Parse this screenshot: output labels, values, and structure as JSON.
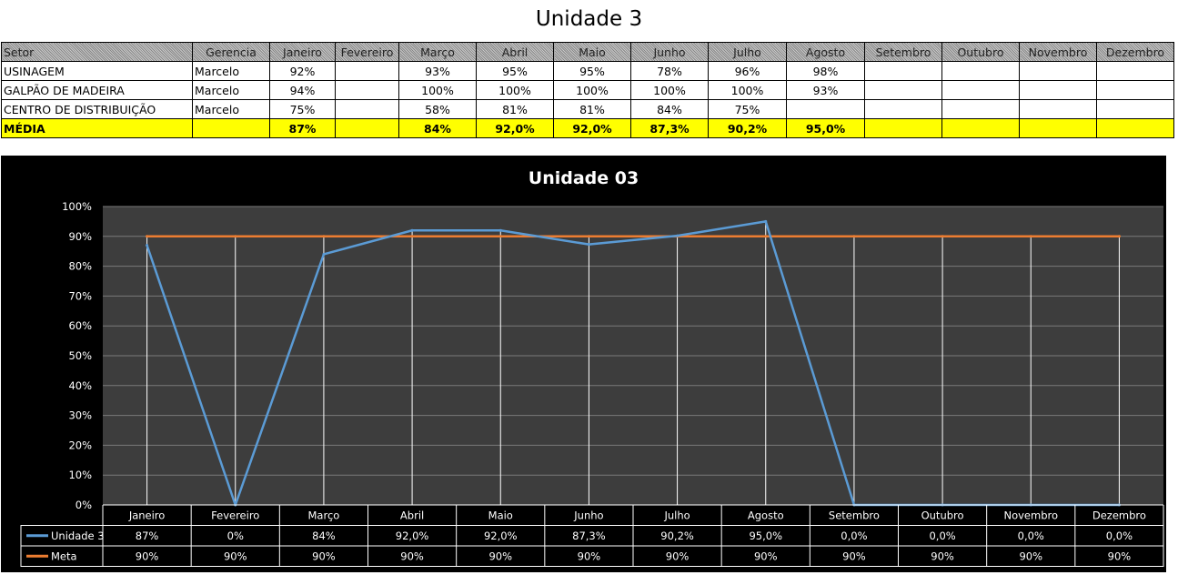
{
  "title": "Unidade 3",
  "table": {
    "headers": [
      "Setor",
      "Gerencia",
      "Janeiro",
      "Fevereiro",
      "Março",
      "Abril",
      "Maio",
      "Junho",
      "Julho",
      "Agosto",
      "Setembro",
      "Outubro",
      "Novembro",
      "Dezembro"
    ],
    "rows": [
      [
        "USINAGEM",
        "Marcelo",
        "92%",
        "",
        "93%",
        "95%",
        "95%",
        "78%",
        "96%",
        "98%",
        "",
        "",
        "",
        ""
      ],
      [
        "GALPÃO DE MADEIRA",
        "Marcelo",
        "94%",
        "",
        "100%",
        "100%",
        "100%",
        "100%",
        "100%",
        "93%",
        "",
        "",
        "",
        ""
      ],
      [
        "CENTRO DE DISTRIBUIÇÃO",
        "Marcelo",
        "75%",
        "",
        "58%",
        "81%",
        "81%",
        "84%",
        "75%",
        "",
        "",
        "",
        "",
        ""
      ]
    ],
    "media_row": [
      "MÉDIA",
      "",
      "87%",
      "",
      "84%",
      "92,0%",
      "92,0%",
      "87,3%",
      "90,2%",
      "95,0%",
      "",
      "",
      "",
      ""
    ]
  },
  "chart_data": {
    "type": "line",
    "title": "Unidade 03",
    "categories": [
      "Janeiro",
      "Fevereiro",
      "Março",
      "Abril",
      "Maio",
      "Junho",
      "Julho",
      "Agosto",
      "Setembro",
      "Outubro",
      "Novembro",
      "Dezembro"
    ],
    "ylim": [
      0,
      100
    ],
    "yticks": [
      "0%",
      "10%",
      "20%",
      "30%",
      "40%",
      "50%",
      "60%",
      "70%",
      "80%",
      "90%",
      "100%"
    ],
    "grid": true,
    "series": [
      {
        "name": "Unidade 3",
        "color": "#5b9bd5",
        "values": [
          87,
          0,
          84,
          92.0,
          92.0,
          87.3,
          90.2,
          95.0,
          0,
          0,
          0,
          0
        ],
        "labels": [
          "87%",
          "0%",
          "84%",
          "92,0%",
          "92,0%",
          "87,3%",
          "90,2%",
          "95,0%",
          "0,0%",
          "0,0%",
          "0,0%",
          "0,0%"
        ]
      },
      {
        "name": "Meta",
        "color": "#ed7d31",
        "values": [
          90,
          90,
          90,
          90,
          90,
          90,
          90,
          90,
          90,
          90,
          90,
          90
        ],
        "labels": [
          "90%",
          "90%",
          "90%",
          "90%",
          "90%",
          "90%",
          "90%",
          "90%",
          "90%",
          "90%",
          "90%",
          "90%"
        ]
      }
    ]
  }
}
